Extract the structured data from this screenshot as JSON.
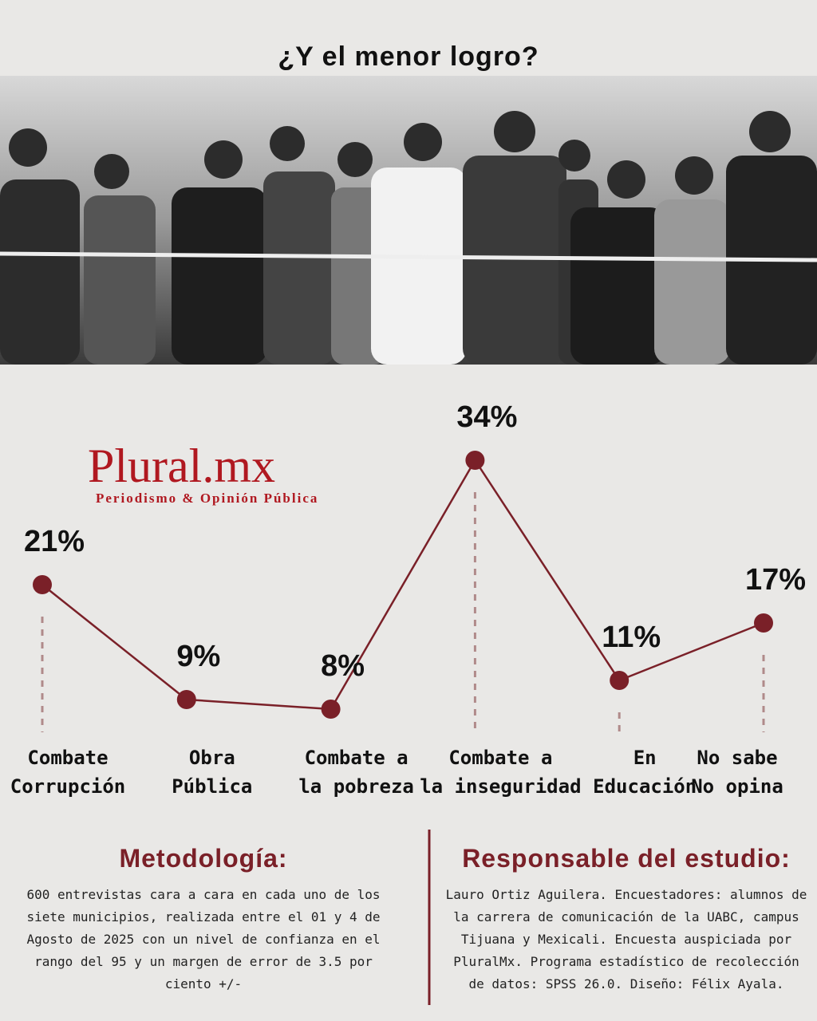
{
  "chart_data": {
    "type": "line",
    "title": "¿Y el menor logro?",
    "categories": [
      "Combate\nCorrupción",
      "Obra\nPública",
      "Combate a\nla pobreza",
      "Combate a\nla inseguridad",
      "En\nEducación",
      "No sabe\nNo opina"
    ],
    "values": [
      21,
      9,
      8,
      34,
      11,
      17
    ],
    "value_labels": [
      "21%",
      "9%",
      "8%",
      "34%",
      "11%",
      "17%"
    ],
    "color": "#7a2028"
  },
  "logo": {
    "name": "Plural.mx",
    "tagline": "Periodismo & Opinión Pública"
  },
  "methodology": {
    "title": "Metodología:",
    "text": "600 entrevistas cara a cara en cada uno de los siete municipios, realizada entre el 01 y 4 de Agosto de 2025 con un nivel de confianza en el rango del 95 y un margen de error de 3.5 por ciento +/-"
  },
  "responsible": {
    "title": "Responsable del estudio:",
    "text": "Lauro Ortiz Aguilera. Encuestadores: alumnos de la carrera de comunicación de la UABC, campus Tijuana y Mexicali. Encuesta auspiciada por PluralMx. Programa estadístico de recolección de datos: SPSS 26.0. Diseño: Félix Ayala."
  }
}
